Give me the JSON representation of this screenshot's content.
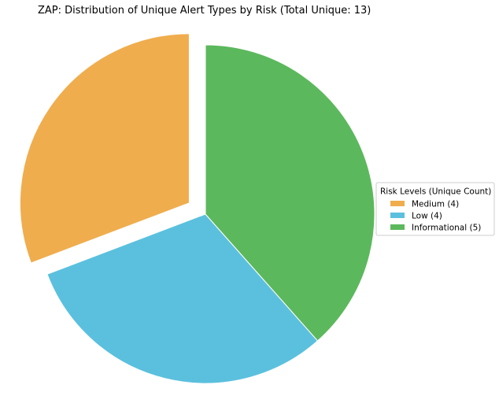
{
  "chart_data": {
    "type": "pie",
    "title": "ZAP: Distribution of Unique Alert Types by Risk (Total Unique: 13)",
    "categories": [
      "Medium",
      "Low",
      "Informational"
    ],
    "values": [
      4,
      4,
      5
    ],
    "colors": [
      "#f0ad4e",
      "#5bc0de",
      "#5cb85c"
    ],
    "exploded": [
      "Medium"
    ],
    "start_angle_deg": 90,
    "direction": "counterclockwise",
    "legend": {
      "title": "Risk Levels (Unique Count)",
      "placement": "center-right",
      "labels": [
        "Medium (4)",
        "Low (4)",
        "Informational (5)"
      ]
    }
  }
}
